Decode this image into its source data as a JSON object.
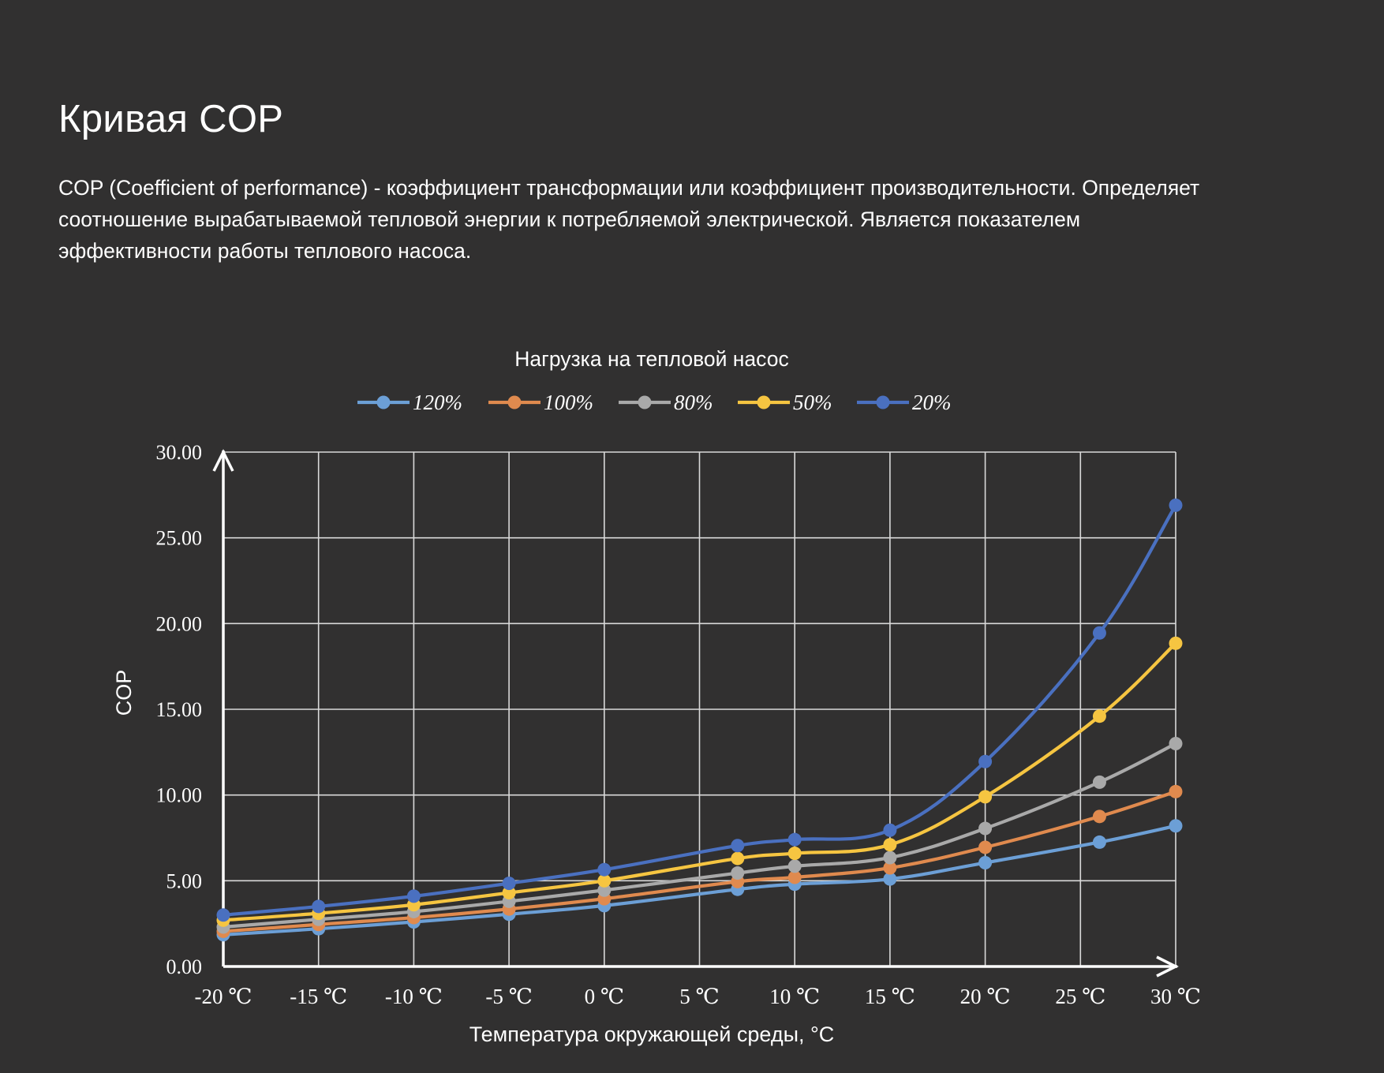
{
  "page": {
    "title": "Кривая COP",
    "description": "COP (Coefficient of performance) - коэффициент трансформации или коэффициент производительности. Определяет соотношение вырабатываемой тепловой энергии к потребляемой электрической. Является показателем эффективности работы теплового насоса."
  },
  "chart_data": {
    "type": "line",
    "title": "Нагрузка на тепловой насос",
    "xlabel": "Температура окружающей среды, °C",
    "ylabel": "COP",
    "x_tick_labels": [
      "-20 ℃",
      "-15 ℃",
      "-10 ℃",
      "-5 ℃",
      "0 ℃",
      "5 ℃",
      "10 ℃",
      "15 ℃",
      "20 ℃",
      "25 ℃",
      "30 ℃"
    ],
    "x_ticks": [
      -20,
      -15,
      -10,
      -5,
      0,
      5,
      10,
      15,
      20,
      25,
      30
    ],
    "y_tick_labels": [
      "0.00",
      "5.00",
      "10.00",
      "15.00",
      "20.00",
      "25.00",
      "30.00"
    ],
    "y_ticks": [
      0,
      5,
      10,
      15,
      20,
      25,
      30
    ],
    "xlim": [
      -20,
      30
    ],
    "ylim": [
      0,
      30
    ],
    "grid": true,
    "legend_position": "top-center",
    "x": [
      -20,
      -15,
      -10,
      -5,
      0,
      7,
      10,
      15,
      20,
      26,
      30
    ],
    "series": [
      {
        "name": "120%",
        "color": "#6c9fd6",
        "values": [
          1.85,
          2.2,
          2.6,
          3.05,
          3.55,
          4.5,
          4.8,
          5.1,
          6.05,
          7.25,
          8.2
        ]
      },
      {
        "name": "100%",
        "color": "#e08a4e",
        "values": [
          2.05,
          2.45,
          2.85,
          3.35,
          3.95,
          4.95,
          5.2,
          5.75,
          6.95,
          8.75,
          10.2
        ]
      },
      {
        "name": "80%",
        "color": "#a9a9a9",
        "values": [
          2.3,
          2.75,
          3.2,
          3.8,
          4.45,
          5.45,
          5.85,
          6.35,
          8.05,
          10.75,
          13.0
        ]
      },
      {
        "name": "50%",
        "color": "#f6c541",
        "values": [
          2.7,
          3.1,
          3.6,
          4.3,
          5.0,
          6.3,
          6.6,
          7.1,
          9.9,
          14.6,
          18.85
        ]
      },
      {
        "name": "20%",
        "color": "#4a70c0",
        "values": [
          3.0,
          3.5,
          4.1,
          4.85,
          5.65,
          7.05,
          7.4,
          7.95,
          11.95,
          19.45,
          26.9
        ]
      }
    ]
  }
}
